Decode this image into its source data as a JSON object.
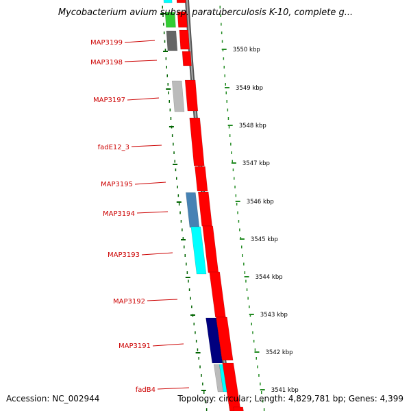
{
  "title": "Mycobacterium avium subsp. paratuberculosis K-10, complete g...",
  "accession": "Accession: NC_002944",
  "stats": "Topology: circular; Length: 4,829,781 bp; Genes: 4,399",
  "colors": {
    "label": "#cc0000",
    "tick_inner": "#006400",
    "tick_outer": "#228b22",
    "backbone": "#777777",
    "forward_gene": "#ff0000",
    "cog_navy": "#00007f",
    "cog_steelblue": "#4682b4",
    "cog_cyan": "#00ffff",
    "cog_green": "#33cc33",
    "cog_gray": "#666666",
    "cog_lightgray": "#bbbbbb"
  },
  "kbp_ticks": [
    "3550 kbp",
    "3549 kbp",
    "3548 kbp",
    "3547 kbp",
    "3546 kbp",
    "3545 kbp",
    "3544 kbp",
    "3543 kbp",
    "3542 kbp",
    "3541 kbp"
  ],
  "gene_labels": [
    "MAP3199",
    "MAP3198",
    "MAP3197",
    "fadE12_3",
    "MAP3195",
    "MAP3194",
    "MAP3193",
    "MAP3192",
    "MAP3191",
    "fadB4"
  ]
}
